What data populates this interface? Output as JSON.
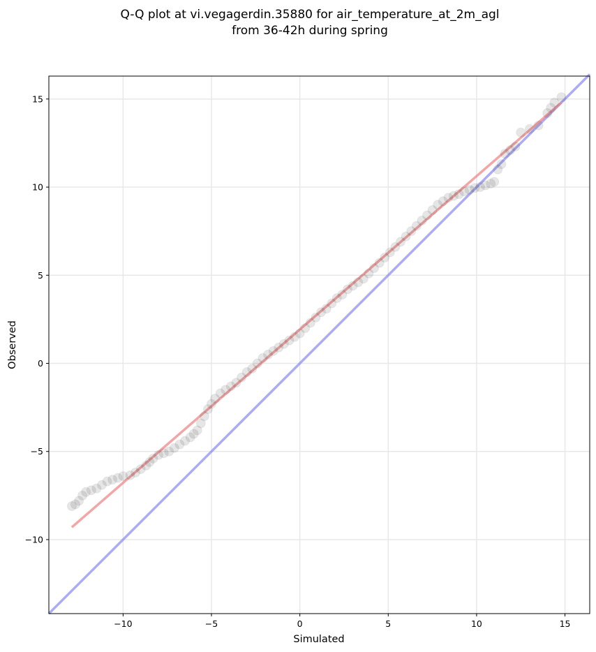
{
  "chart_data": {
    "type": "scatter",
    "title": "Q-Q plot at vi.vegagerdin.35880 for air_temperature_at_2m_agl",
    "subtitle": "from 36-42h during spring",
    "xlabel": "Simulated",
    "ylabel": "Observed",
    "xlim": [
      -14.2,
      16.4
    ],
    "ylim": [
      -14.2,
      16.3
    ],
    "xticks": [
      -10,
      -5,
      0,
      5,
      10,
      15
    ],
    "yticks": [
      -10,
      -5,
      0,
      5,
      10,
      15
    ],
    "xtick_labels": [
      "−10",
      "−5",
      "0",
      "5",
      "10",
      "15"
    ],
    "ytick_labels": [
      "−10",
      "−5",
      "0",
      "5",
      "10",
      "15"
    ],
    "grid": true,
    "series": [
      {
        "role": "quantiles",
        "color": "#333333",
        "opacity": 0.12,
        "points": [
          [
            -12.9,
            -8.1
          ],
          [
            -12.7,
            -8.0
          ],
          [
            -12.5,
            -7.8
          ],
          [
            -12.3,
            -7.5
          ],
          [
            -12.1,
            -7.3
          ],
          [
            -11.8,
            -7.2
          ],
          [
            -11.5,
            -7.1
          ],
          [
            -11.2,
            -6.9
          ],
          [
            -10.9,
            -6.7
          ],
          [
            -10.6,
            -6.6
          ],
          [
            -10.3,
            -6.5
          ],
          [
            -10.0,
            -6.4
          ],
          [
            -9.6,
            -6.35
          ],
          [
            -9.3,
            -6.2
          ],
          [
            -9.0,
            -6.0
          ],
          [
            -8.7,
            -5.8
          ],
          [
            -8.5,
            -5.6
          ],
          [
            -8.3,
            -5.4
          ],
          [
            -8.0,
            -5.2
          ],
          [
            -7.7,
            -5.1
          ],
          [
            -7.4,
            -5.0
          ],
          [
            -7.1,
            -4.8
          ],
          [
            -6.8,
            -4.6
          ],
          [
            -6.5,
            -4.4
          ],
          [
            -6.2,
            -4.2
          ],
          [
            -6.0,
            -4.0
          ],
          [
            -5.8,
            -3.8
          ],
          [
            -5.6,
            -3.4
          ],
          [
            -5.4,
            -3.0
          ],
          [
            -5.2,
            -2.6
          ],
          [
            -5.0,
            -2.3
          ],
          [
            -4.8,
            -2.0
          ],
          [
            -4.5,
            -1.7
          ],
          [
            -4.2,
            -1.5
          ],
          [
            -3.9,
            -1.3
          ],
          [
            -3.6,
            -1.1
          ],
          [
            -3.3,
            -0.8
          ],
          [
            -3.0,
            -0.5
          ],
          [
            -2.7,
            -0.3
          ],
          [
            -2.4,
            0.0
          ],
          [
            -2.1,
            0.3
          ],
          [
            -1.8,
            0.5
          ],
          [
            -1.5,
            0.7
          ],
          [
            -1.2,
            0.9
          ],
          [
            -0.9,
            1.1
          ],
          [
            -0.6,
            1.3
          ],
          [
            -0.3,
            1.5
          ],
          [
            0.0,
            1.7
          ],
          [
            0.3,
            2.0
          ],
          [
            0.6,
            2.3
          ],
          [
            0.9,
            2.6
          ],
          [
            1.2,
            2.9
          ],
          [
            1.5,
            3.1
          ],
          [
            1.8,
            3.4
          ],
          [
            2.1,
            3.7
          ],
          [
            2.4,
            3.9
          ],
          [
            2.7,
            4.2
          ],
          [
            3.0,
            4.4
          ],
          [
            3.3,
            4.6
          ],
          [
            3.6,
            4.8
          ],
          [
            3.9,
            5.1
          ],
          [
            4.2,
            5.4
          ],
          [
            4.5,
            5.7
          ],
          [
            4.8,
            6.0
          ],
          [
            5.1,
            6.3
          ],
          [
            5.4,
            6.6
          ],
          [
            5.7,
            6.9
          ],
          [
            6.0,
            7.2
          ],
          [
            6.3,
            7.5
          ],
          [
            6.6,
            7.8
          ],
          [
            6.9,
            8.1
          ],
          [
            7.2,
            8.4
          ],
          [
            7.5,
            8.7
          ],
          [
            7.8,
            9.0
          ],
          [
            8.1,
            9.2
          ],
          [
            8.4,
            9.4
          ],
          [
            8.7,
            9.5
          ],
          [
            9.0,
            9.6
          ],
          [
            9.3,
            9.75
          ],
          [
            9.6,
            9.85
          ],
          [
            9.9,
            9.95
          ],
          [
            10.2,
            10.0
          ],
          [
            10.5,
            10.1
          ],
          [
            10.8,
            10.2
          ],
          [
            11.0,
            10.3
          ],
          [
            11.2,
            11.0
          ],
          [
            11.4,
            11.3
          ],
          [
            11.6,
            11.9
          ],
          [
            11.9,
            12.1
          ],
          [
            12.2,
            12.3
          ],
          [
            12.5,
            13.1
          ],
          [
            13.0,
            13.3
          ],
          [
            13.5,
            13.5
          ],
          [
            14.0,
            14.2
          ],
          [
            14.2,
            14.5
          ],
          [
            14.4,
            14.8
          ],
          [
            14.8,
            15.1
          ]
        ]
      },
      {
        "role": "fit line",
        "color": "#f08080",
        "points": [
          [
            -12.9,
            -9.3
          ],
          [
            14.8,
            14.8
          ]
        ]
      },
      {
        "role": "identity line",
        "color": "#8080f0",
        "points": [
          [
            -14.2,
            -14.2
          ],
          [
            16.4,
            16.4
          ]
        ]
      }
    ]
  }
}
